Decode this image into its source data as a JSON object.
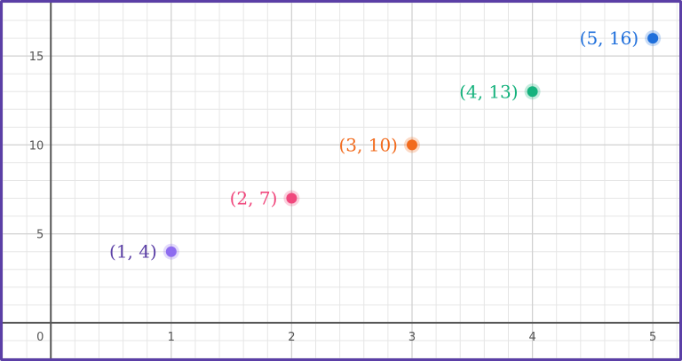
{
  "chart_data": {
    "type": "scatter",
    "title": "",
    "xlabel": "",
    "ylabel": "",
    "xlim": [
      -0.4,
      5.22
    ],
    "ylim": [
      -2.0,
      18.0
    ],
    "grid": true,
    "x_ticks": [
      0,
      1,
      2,
      3,
      4,
      5
    ],
    "x_tick_labels": [
      "0",
      "1",
      "2",
      "3",
      "4",
      "5"
    ],
    "y_ticks": [
      5,
      10,
      15
    ],
    "y_tick_labels": [
      "5",
      "10",
      "15"
    ],
    "points": [
      {
        "x": 1,
        "y": 4,
        "label": "(1, 4)",
        "color": "#8e6cf0"
      },
      {
        "x": 2,
        "y": 7,
        "label": "(2, 7)",
        "color": "#f0487d"
      },
      {
        "x": 3,
        "y": 10,
        "label": "(3, 10)",
        "color": "#f26b1d"
      },
      {
        "x": 4,
        "y": 13,
        "label": "(4, 13)",
        "color": "#16b27d"
      },
      {
        "x": 5,
        "y": 16,
        "label": "(5, 16)",
        "color": "#1f6fdb"
      }
    ],
    "colors": {
      "grid_minor": "#e6e6e6",
      "grid_major": "#d2d2d2",
      "axis": "#555555",
      "border": "#5b3fa6",
      "label_purple": "#5b3fa6"
    }
  }
}
